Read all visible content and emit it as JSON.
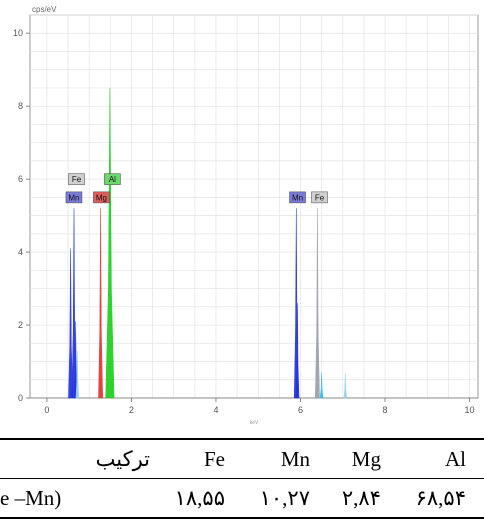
{
  "chart_data": {
    "type": "bar",
    "ylabel": "cps/eV",
    "xlabel": "keV",
    "xlim": [
      -0.4,
      10.2
    ],
    "ylim": [
      0,
      10.5
    ],
    "xticks": [
      0,
      2,
      4,
      6,
      8,
      10
    ],
    "yticks": [
      0,
      2,
      4,
      6,
      8,
      10
    ],
    "grid": true,
    "peaks": [
      {
        "x": 0.56,
        "y": 4.1,
        "color": "#2233dd"
      },
      {
        "x": 0.64,
        "y": 5.2,
        "color": "#2233dd"
      },
      {
        "x": 0.68,
        "y": 2.1,
        "color": "#2233dd"
      },
      {
        "x": 0.72,
        "y": 1.3,
        "color": "#9ad0e8"
      },
      {
        "x": 1.27,
        "y": 5.2,
        "color": "#e33333"
      },
      {
        "x": 1.49,
        "y": 8.5,
        "color": "#1ecf1e"
      },
      {
        "x": 5.9,
        "y": 5.2,
        "color": "#2233dd"
      },
      {
        "x": 5.93,
        "y": 2.6,
        "color": "#2233dd"
      },
      {
        "x": 6.4,
        "y": 5.2,
        "color": "#9aa0a8"
      },
      {
        "x": 6.5,
        "y": 0.7,
        "color": "#33bbee"
      },
      {
        "x": 7.06,
        "y": 0.7,
        "color": "#9ad0e8"
      }
    ],
    "labels": [
      {
        "text": "Fe",
        "x": 0.7,
        "y": 6.0,
        "bg": "#d0d0d0"
      },
      {
        "text": "Mn",
        "x": 0.64,
        "y": 5.5,
        "bg": "#7a7ad8"
      },
      {
        "text": "Mg",
        "x": 1.29,
        "y": 5.5,
        "bg": "#e06060"
      },
      {
        "text": "Al",
        "x": 1.55,
        "y": 6.0,
        "bg": "#6cd86c"
      },
      {
        "text": "Mn",
        "x": 5.93,
        "y": 5.5,
        "bg": "#7a7ad8"
      },
      {
        "text": "Fe",
        "x": 6.45,
        "y": 5.5,
        "bg": "#d0d0d0"
      }
    ]
  },
  "table": {
    "headers": [
      "ترکیب",
      "Fe",
      "Mn",
      "Mg",
      "Al"
    ],
    "row": [
      "e –Mn)",
      "۱۸,۵۵",
      "۱۰,۲۷",
      "۲,۸۴",
      "۶۸,۵۴"
    ]
  }
}
